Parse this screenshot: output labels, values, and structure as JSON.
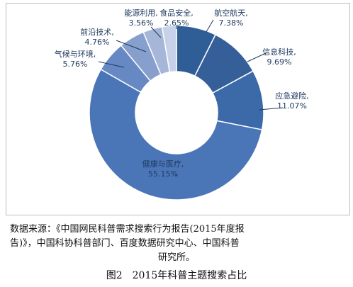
{
  "chart_data": {
    "type": "pie",
    "style": "donut",
    "categories": [
      "航空航天",
      "信息科技",
      "应急避险",
      "健康与医疗",
      "气候与环境",
      "前沿技术",
      "能源利用",
      "食品安全"
    ],
    "values": [
      7.38,
      9.69,
      11.07,
      55.15,
      5.76,
      4.76,
      3.56,
      2.65
    ],
    "value_labels": [
      "7.38%",
      "9.69%",
      "11.07%",
      "55.15%",
      "5.76%",
      "4.76%",
      "3.56%",
      "2.65%"
    ],
    "colors": [
      "#2f5d95",
      "#345f99",
      "#3c69a8",
      "#4a76b8",
      "#6689c3",
      "#879fcd",
      "#a6b6d9",
      "#c7d1e8"
    ],
    "start_angle_deg": 0,
    "direction": "clockwise"
  },
  "source_text": {
    "line1": "数据来源：《中国网民科普需求搜索行为报告(2015年度报",
    "line2": "告)》，中国科协科普部门、百度数据研究中心、中国科普",
    "line3": "研究所。"
  },
  "caption": "图2　2015年科普主题搜索占比"
}
